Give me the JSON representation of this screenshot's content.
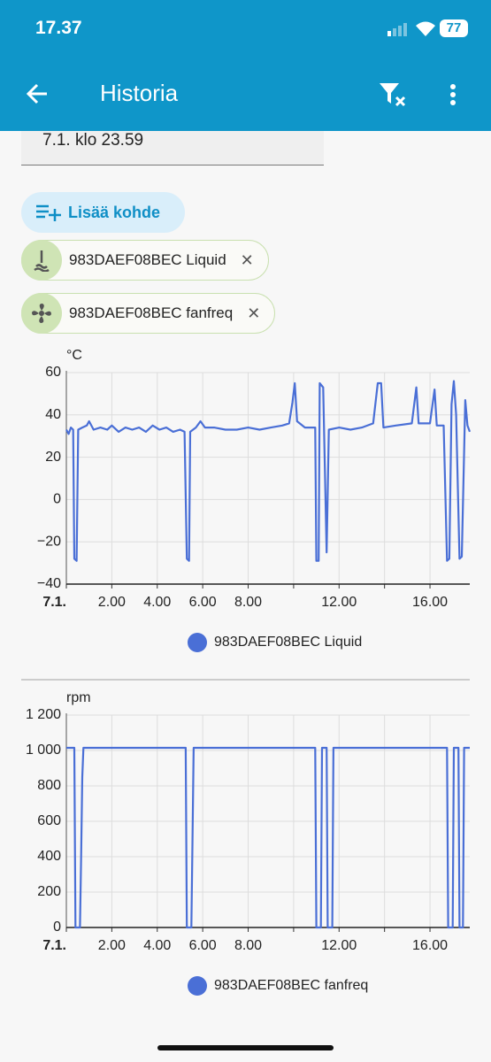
{
  "status_bar": {
    "time": "17.37",
    "battery": "77"
  },
  "app_bar": {
    "title": "Historia"
  },
  "date_field": {
    "value": "7.1. klo 23.59"
  },
  "add_button": {
    "label": "Lisää kohde"
  },
  "chips": [
    {
      "label": "983DAEF08BEC Liquid"
    },
    {
      "label": "983DAEF08BEC fanfreq"
    }
  ],
  "chart_data": [
    {
      "type": "line",
      "y_label": "°C",
      "x": [
        0,
        0.1,
        0.2,
        0.3,
        0.35,
        0.45,
        0.52,
        0.7,
        0.9,
        1.0,
        1.2,
        1.5,
        1.8,
        2.0,
        2.3,
        2.6,
        2.9,
        3.2,
        3.5,
        3.8,
        4.1,
        4.4,
        4.7,
        5.0,
        5.2,
        5.3,
        5.4,
        5.45,
        5.7,
        5.9,
        6.1,
        6.5,
        7.0,
        7.5,
        8.0,
        8.5,
        9.0,
        9.5,
        9.8,
        9.95,
        10.05,
        10.15,
        10.5,
        10.95,
        11.0,
        11.1,
        11.15,
        11.3,
        11.45,
        11.55,
        12.0,
        12.5,
        13.0,
        13.5,
        13.7,
        13.85,
        13.95,
        14.5,
        15.2,
        15.4,
        15.5,
        16.0,
        16.2,
        16.3,
        16.6,
        16.75,
        16.85,
        16.95,
        17.05,
        17.15,
        17.3,
        17.4,
        17.55,
        17.65,
        17.75
      ],
      "series": [
        {
          "name": "983DAEF08BEC Liquid",
          "color": "#4a6fd6",
          "values": [
            33,
            31,
            34,
            33,
            -28,
            -29,
            33,
            34,
            35,
            37,
            33,
            34,
            33,
            35,
            32,
            34,
            33,
            34,
            32,
            35,
            33,
            34,
            32,
            33,
            32,
            -28,
            -29,
            32,
            34,
            37,
            34,
            34,
            33,
            33,
            34,
            33,
            34,
            35,
            36,
            46,
            55,
            37,
            34,
            34,
            -29,
            -29,
            55,
            53,
            -25,
            33,
            34,
            33,
            34,
            36,
            55,
            55,
            34,
            35,
            36,
            53,
            36,
            36,
            52,
            35,
            35,
            -29,
            -28,
            45,
            56,
            40,
            -28,
            -27,
            47,
            35,
            32
          ]
        }
      ],
      "xlim": [
        0,
        17.75
      ],
      "xticks": [
        {
          "value": 0,
          "label": "7.1."
        },
        {
          "value": 2,
          "label": "2.00"
        },
        {
          "value": 4,
          "label": "4.00"
        },
        {
          "value": 6,
          "label": "6.00"
        },
        {
          "value": 8,
          "label": "8.00"
        },
        {
          "value": 10,
          "label": null
        },
        {
          "value": 12,
          "label": "12.00"
        },
        {
          "value": 14,
          "label": null
        },
        {
          "value": 16,
          "label": "16.00"
        }
      ],
      "ylim": [
        -40,
        60
      ],
      "yticks": [
        {
          "value": -40,
          "label": "−40"
        },
        {
          "value": -20,
          "label": "−20"
        },
        0,
        20,
        40,
        60
      ],
      "grid": true
    },
    {
      "type": "line",
      "y_label": "rpm",
      "x": [
        0,
        0.35,
        0.4,
        0.6,
        0.65,
        0.7,
        0.75,
        5.25,
        5.3,
        5.5,
        5.55,
        5.6,
        10.95,
        11.0,
        11.2,
        11.25,
        11.45,
        11.5,
        11.7,
        11.75,
        16.75,
        16.8,
        17.0,
        17.05,
        17.25,
        17.3,
        17.45,
        17.5,
        17.75
      ],
      "series": [
        {
          "name": "983DAEF08BEC fanfreq",
          "color": "#4a6fd6",
          "values": [
            1015,
            1015,
            0,
            0,
            400,
            850,
            1015,
            1015,
            0,
            0,
            500,
            1015,
            1015,
            0,
            0,
            1015,
            1015,
            0,
            0,
            1015,
            1015,
            0,
            0,
            1015,
            1015,
            0,
            0,
            1015,
            1015
          ]
        }
      ],
      "xlim": [
        0,
        17.75
      ],
      "xticks": [
        {
          "value": 0,
          "label": "7.1."
        },
        {
          "value": 2,
          "label": "2.00"
        },
        {
          "value": 4,
          "label": "4.00"
        },
        {
          "value": 6,
          "label": "6.00"
        },
        {
          "value": 8,
          "label": "8.00"
        },
        {
          "value": 10,
          "label": null
        },
        {
          "value": 12,
          "label": "12.00"
        },
        {
          "value": 14,
          "label": null
        },
        {
          "value": 16,
          "label": "16.00"
        }
      ],
      "ylim": [
        0,
        1200
      ],
      "yticks": [
        0,
        200,
        400,
        600,
        800,
        {
          "value": 1000,
          "label": "1 000"
        },
        {
          "value": 1200,
          "label": "1 200"
        }
      ],
      "grid": true
    }
  ]
}
